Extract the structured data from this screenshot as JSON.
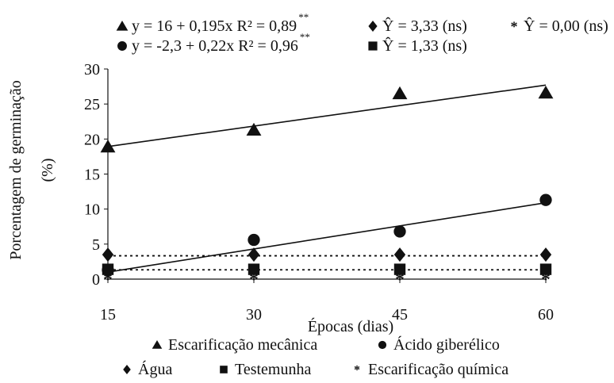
{
  "chart_data": {
    "type": "scatter",
    "ylabel": "Porcentagem de germinação (%)",
    "xlabel": "Épocas (dias)",
    "x_ticks": [
      15,
      30,
      45,
      60
    ],
    "y_ticks": [
      0,
      5,
      10,
      15,
      20,
      25,
      30
    ],
    "xlim": [
      15,
      60
    ],
    "ylim": [
      0,
      30
    ],
    "series": [
      {
        "name": "Escarificação mecânica",
        "marker": "triangle",
        "x": [
          15,
          30,
          45,
          60
        ],
        "y": [
          18.9,
          21.3,
          26.5,
          26.6
        ],
        "fit": {
          "type": "linear",
          "intercept": 16,
          "slope": 0.195,
          "style": "solid"
        }
      },
      {
        "name": "Ácido giberélico",
        "marker": "circle",
        "x": [
          15,
          30,
          45,
          60
        ],
        "y": [
          1.3,
          5.6,
          6.8,
          11.3
        ],
        "fit": {
          "type": "linear",
          "intercept": -2.3,
          "slope": 0.22,
          "style": "solid"
        }
      },
      {
        "name": "Água",
        "marker": "diamond",
        "x": [
          15,
          30,
          45,
          60
        ],
        "y": [
          3.5,
          3.5,
          3.5,
          3.5
        ],
        "fit": {
          "type": "constant",
          "value": 3.33,
          "style": "dotted"
        }
      },
      {
        "name": "Testemunha",
        "marker": "square",
        "x": [
          15,
          30,
          45,
          60
        ],
        "y": [
          1.4,
          1.4,
          1.4,
          1.4
        ],
        "fit": {
          "type": "constant",
          "value": 1.33,
          "style": "dotted"
        }
      },
      {
        "name": "Escarificação química",
        "marker": "asterisk",
        "x": [
          15,
          30,
          45,
          60
        ],
        "y": [
          0,
          0,
          0,
          0
        ],
        "fit": {
          "type": "constant",
          "value": 0.0,
          "style": "none"
        }
      }
    ],
    "equations": {
      "row1": [
        {
          "marker": "triangle",
          "text": "y =  16 + 0,195x  R² = 0,89",
          "sup": "**"
        },
        {
          "marker": "diamond",
          "text": "Ŷ = 3,33 (ns)"
        },
        {
          "marker": "asterisk",
          "text": "Ŷ  = 0,00 (ns)"
        }
      ],
      "row2": [
        {
          "marker": "circle",
          "text": "y = -2,3 + 0,22x  R² = 0,96",
          "sup": "**"
        },
        {
          "marker": "square",
          "text": "Ŷ = 1,33 (ns)"
        }
      ]
    },
    "legend_position": "bottom",
    "grid": false
  }
}
